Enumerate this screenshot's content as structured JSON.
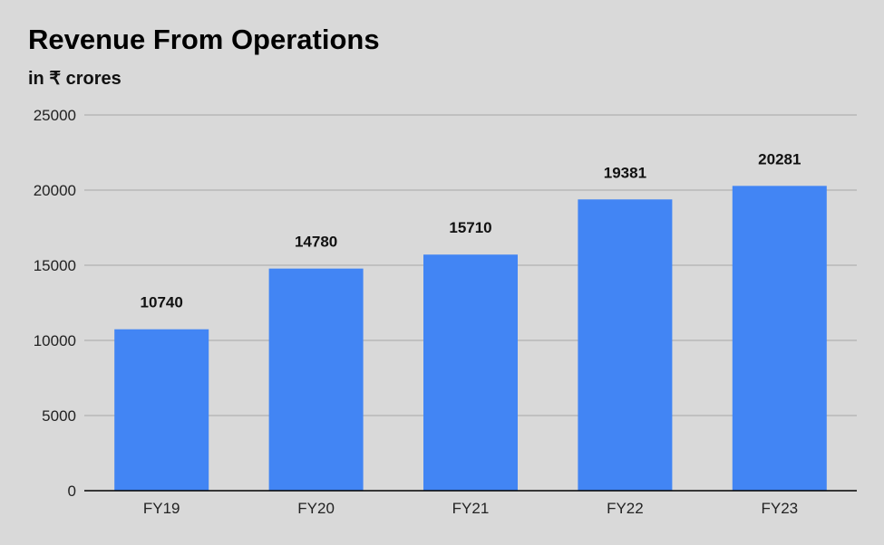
{
  "chart_data": {
    "type": "bar",
    "title": "Revenue From Operations",
    "subtitle": "in ₹ crores",
    "xlabel": "",
    "ylabel": "",
    "categories": [
      "FY19",
      "FY20",
      "FY21",
      "FY22",
      "FY23"
    ],
    "values": [
      10740,
      14780,
      15710,
      19381,
      20281
    ],
    "ylim": [
      0,
      25000
    ],
    "yticks": [
      0,
      5000,
      10000,
      15000,
      20000,
      25000
    ],
    "grid": true,
    "legend": "none",
    "data_labels": true,
    "colors": {
      "bar": "#4285f4",
      "background": "#d9d9d9",
      "grid": "#a6a6a6",
      "axis": "#000000"
    }
  }
}
